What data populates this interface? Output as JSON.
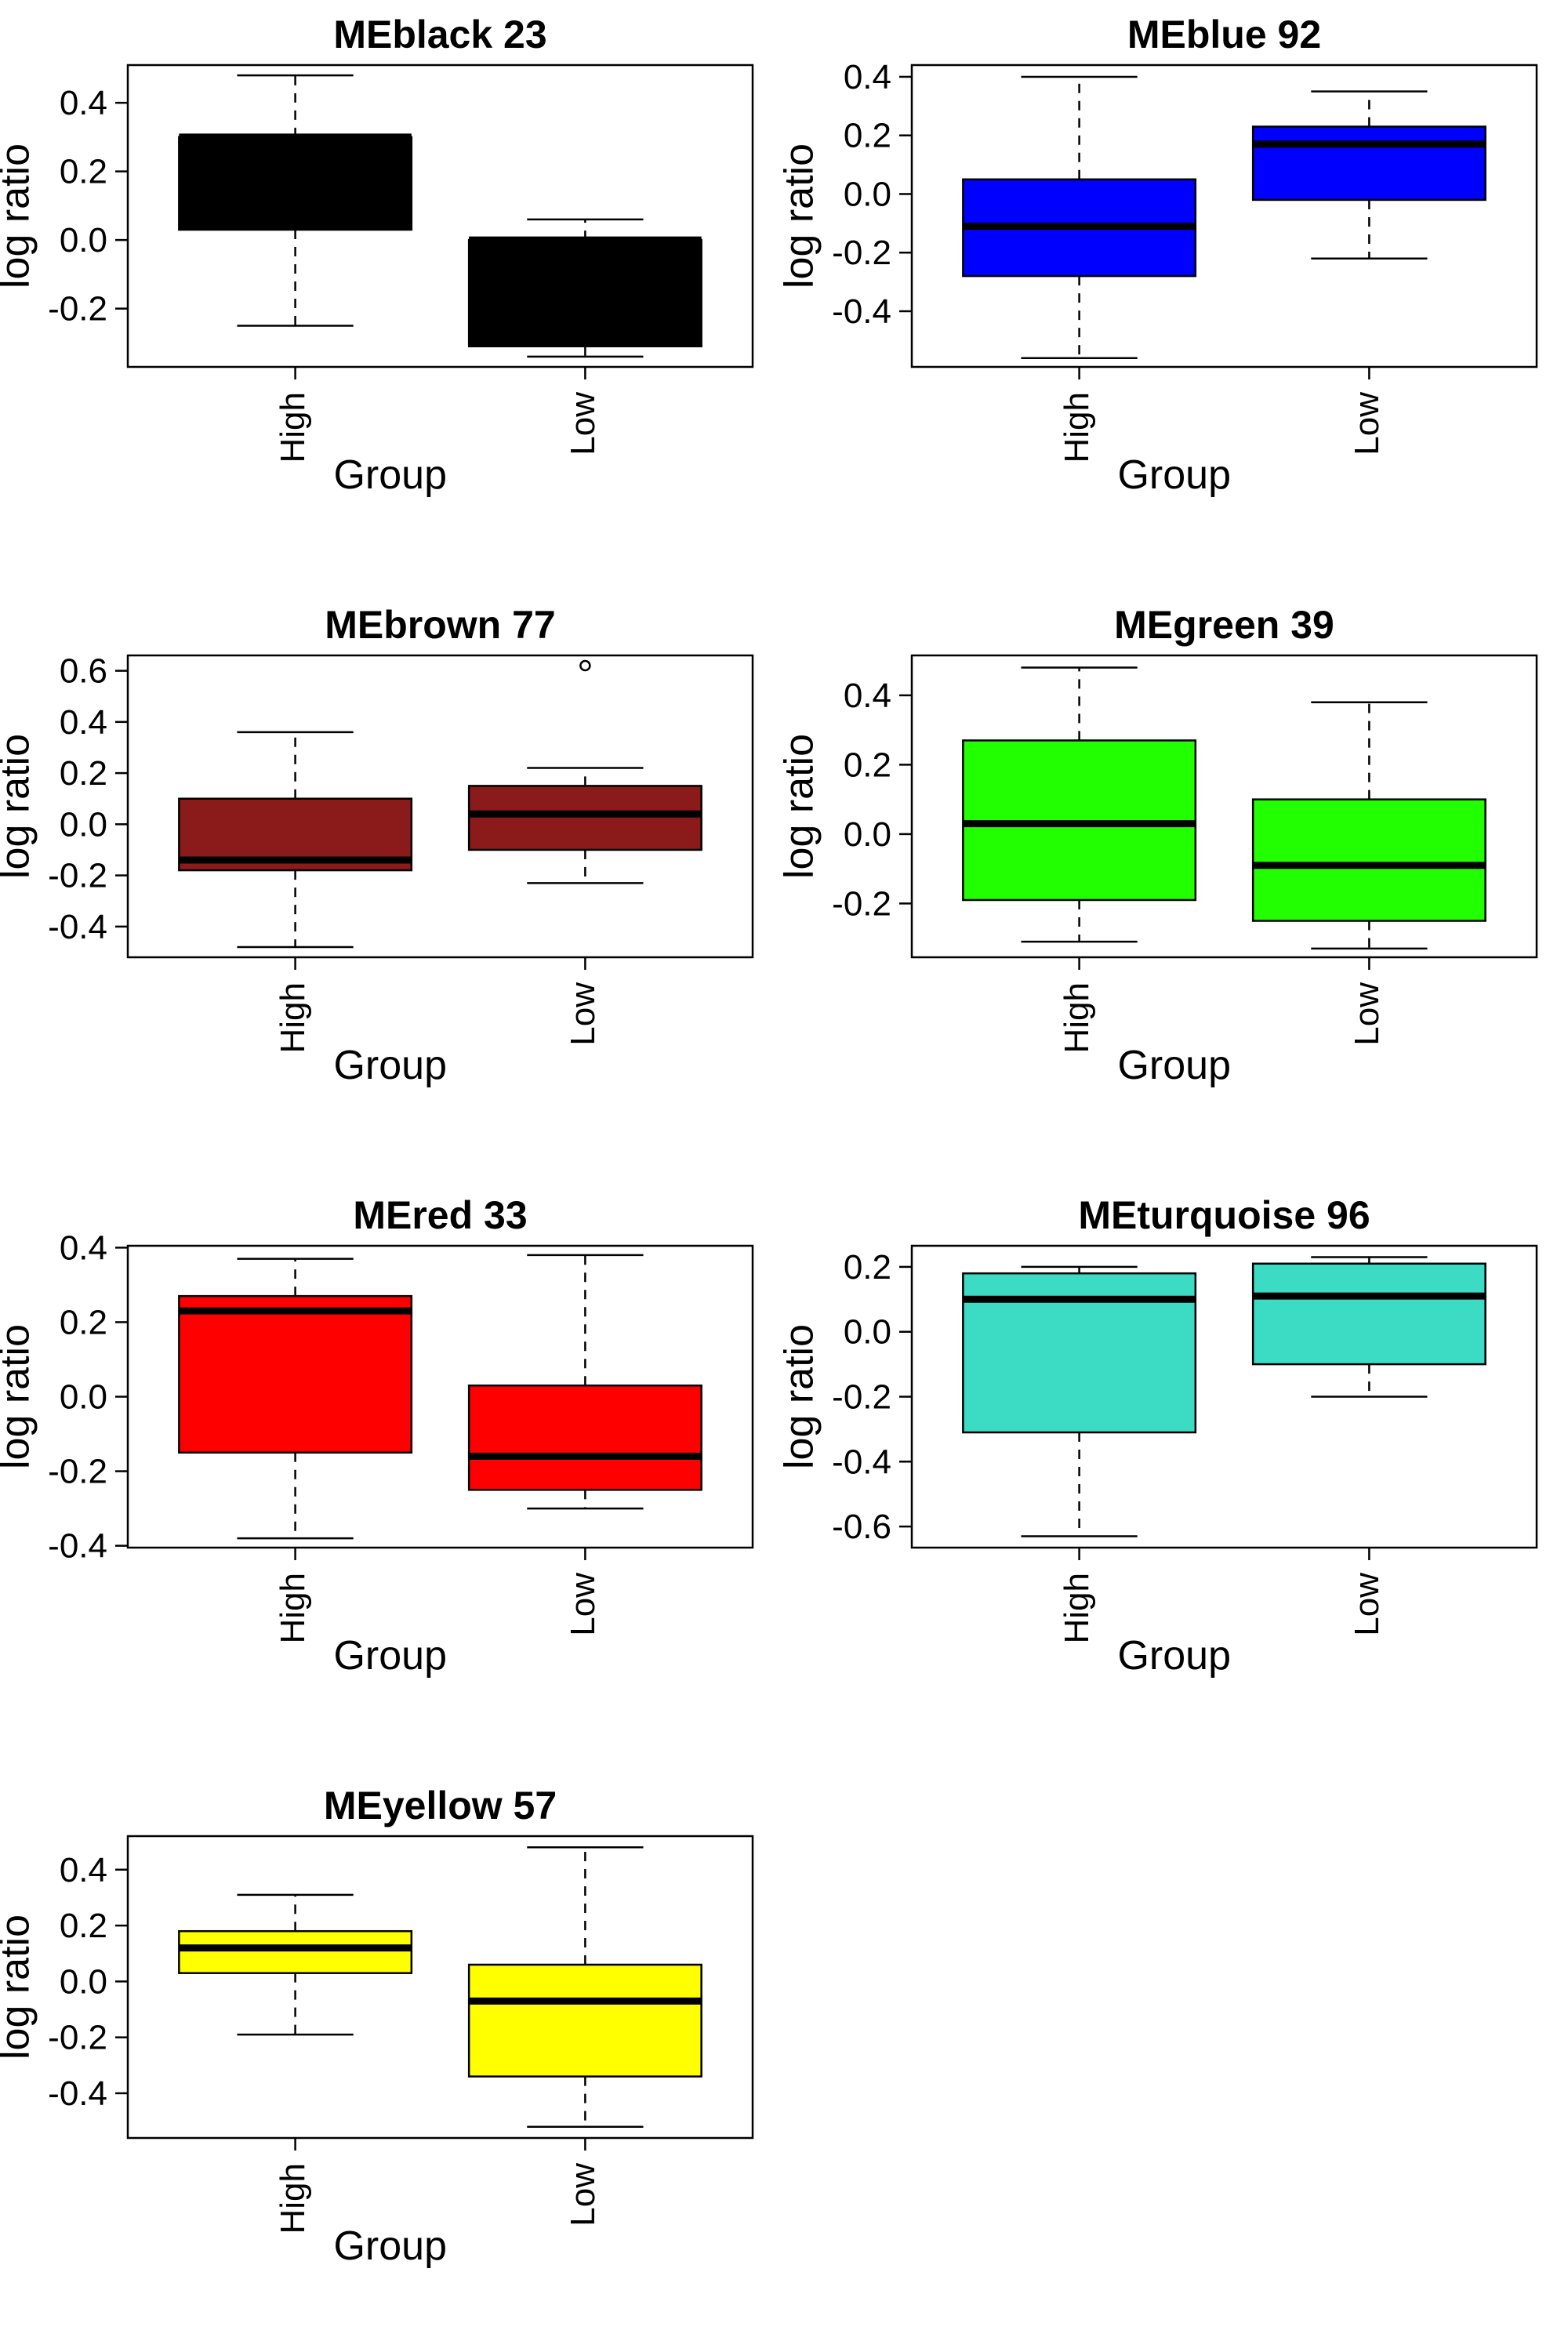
{
  "figure": {
    "panels": [
      {
        "title": "MEblack 23",
        "xlabel": "Group",
        "ylabel": "log ratio",
        "ylim": [
          -0.37,
          0.51
        ],
        "yticks": [
          "0.4",
          "0.2",
          "0.0",
          "-0.2"
        ]
      },
      {
        "title": "MEblue 92",
        "xlabel": "Group",
        "ylabel": "log ratio",
        "ylim": [
          -0.59,
          0.44
        ],
        "yticks": [
          "0.4",
          "0.2",
          "0.0",
          "-0.2",
          "-0.4"
        ]
      },
      {
        "title": "MEbrown 77",
        "xlabel": "Group",
        "ylabel": "log ratio",
        "ylim": [
          -0.52,
          0.66
        ],
        "yticks": [
          "0.6",
          "0.4",
          "0.2",
          "0.0",
          "-0.2",
          "-0.4"
        ]
      },
      {
        "title": "MEgreen 39",
        "xlabel": "Group",
        "ylabel": "log ratio",
        "ylim": [
          -0.355,
          0.515
        ],
        "yticks": [
          "0.4",
          "0.2",
          "0.0",
          "-0.2"
        ]
      },
      {
        "title": "MEred 33",
        "xlabel": "Group",
        "ylabel": "log ratio",
        "ylim": [
          -0.405,
          0.405
        ],
        "yticks": [
          "0.4",
          "0.2",
          "0.0",
          "-0.2",
          "-0.4"
        ]
      },
      {
        "title": "MEturquoise 96",
        "xlabel": "Group",
        "ylabel": "log ratio",
        "ylim": [
          -0.665,
          0.265
        ],
        "yticks": [
          "0.2",
          "0.0",
          "-0.2",
          "-0.4",
          "-0.6"
        ]
      },
      {
        "title": "MEyellow 57",
        "xlabel": "Group",
        "ylabel": "log ratio",
        "ylim": [
          -0.56,
          0.52
        ],
        "yticks": [
          "0.4",
          "0.2",
          "0.0",
          "-0.2",
          "-0.4"
        ]
      }
    ]
  },
  "chart_data": [
    {
      "type": "boxplot",
      "title": "MEblack 23",
      "xlabel": "Group",
      "ylabel": "log ratio",
      "categories": [
        "High",
        "Low"
      ],
      "fill_color": "#000000",
      "ylim": [
        -0.37,
        0.51
      ],
      "boxes": [
        {
          "group": "High",
          "whisker_low": -0.25,
          "q1": 0.03,
          "median": 0.3,
          "q3": 0.3,
          "whisker_high": 0.48,
          "outliers": []
        },
        {
          "group": "Low",
          "whisker_low": -0.34,
          "q1": -0.31,
          "median": 0.0,
          "q3": 0.0,
          "whisker_high": 0.06,
          "outliers": []
        }
      ]
    },
    {
      "type": "boxplot",
      "title": "MEblue 92",
      "xlabel": "Group",
      "ylabel": "log ratio",
      "categories": [
        "High",
        "Low"
      ],
      "fill_color": "#0000ff",
      "ylim": [
        -0.59,
        0.44
      ],
      "boxes": [
        {
          "group": "High",
          "whisker_low": -0.56,
          "q1": -0.28,
          "median": -0.11,
          "q3": 0.05,
          "whisker_high": 0.4,
          "outliers": []
        },
        {
          "group": "Low",
          "whisker_low": -0.22,
          "q1": -0.02,
          "median": 0.17,
          "q3": 0.23,
          "whisker_high": 0.35,
          "outliers": []
        }
      ]
    },
    {
      "type": "boxplot",
      "title": "MEbrown 77",
      "xlabel": "Group",
      "ylabel": "log ratio",
      "categories": [
        "High",
        "Low"
      ],
      "fill_color": "#8b1a1a",
      "ylim": [
        -0.52,
        0.66
      ],
      "boxes": [
        {
          "group": "High",
          "whisker_low": -0.48,
          "q1": -0.18,
          "median": -0.14,
          "q3": 0.1,
          "whisker_high": 0.36,
          "outliers": []
        },
        {
          "group": "Low",
          "whisker_low": -0.23,
          "q1": -0.1,
          "median": 0.04,
          "q3": 0.15,
          "whisker_high": 0.22,
          "outliers": [
            0.62
          ]
        }
      ]
    },
    {
      "type": "boxplot",
      "title": "MEgreen 39",
      "xlabel": "Group",
      "ylabel": "log ratio",
      "categories": [
        "High",
        "Low"
      ],
      "fill_color": "#22ff00",
      "ylim": [
        -0.355,
        0.515
      ],
      "boxes": [
        {
          "group": "High",
          "whisker_low": -0.31,
          "q1": -0.19,
          "median": 0.03,
          "q3": 0.27,
          "whisker_high": 0.48,
          "outliers": []
        },
        {
          "group": "Low",
          "whisker_low": -0.33,
          "q1": -0.25,
          "median": -0.09,
          "q3": 0.1,
          "whisker_high": 0.38,
          "outliers": []
        }
      ]
    },
    {
      "type": "boxplot",
      "title": "MEred 33",
      "xlabel": "Group",
      "ylabel": "log ratio",
      "categories": [
        "High",
        "Low"
      ],
      "fill_color": "#ff0000",
      "ylim": [
        -0.405,
        0.405
      ],
      "boxes": [
        {
          "group": "High",
          "whisker_low": -0.38,
          "q1": -0.15,
          "median": 0.23,
          "q3": 0.27,
          "whisker_high": 0.37,
          "outliers": []
        },
        {
          "group": "Low",
          "whisker_low": -0.3,
          "q1": -0.25,
          "median": -0.16,
          "q3": 0.03,
          "whisker_high": 0.38,
          "outliers": []
        }
      ]
    },
    {
      "type": "boxplot",
      "title": "MEturquoise 96",
      "xlabel": "Group",
      "ylabel": "log ratio",
      "categories": [
        "High",
        "Low"
      ],
      "fill_color": "#3cdcc4",
      "ylim": [
        -0.665,
        0.265
      ],
      "boxes": [
        {
          "group": "High",
          "whisker_low": -0.63,
          "q1": -0.31,
          "median": 0.1,
          "q3": 0.18,
          "whisker_high": 0.2,
          "outliers": []
        },
        {
          "group": "Low",
          "whisker_low": -0.2,
          "q1": -0.1,
          "median": 0.11,
          "q3": 0.21,
          "whisker_high": 0.23,
          "outliers": []
        }
      ]
    },
    {
      "type": "boxplot",
      "title": "MEyellow 57",
      "xlabel": "Group",
      "ylabel": "log ratio",
      "categories": [
        "High",
        "Low"
      ],
      "fill_color": "#ffff00",
      "ylim": [
        -0.56,
        0.52
      ],
      "boxes": [
        {
          "group": "High",
          "whisker_low": -0.19,
          "q1": 0.03,
          "median": 0.12,
          "q3": 0.18,
          "whisker_high": 0.31,
          "outliers": []
        },
        {
          "group": "Low",
          "whisker_low": -0.52,
          "q1": -0.34,
          "median": -0.07,
          "q3": 0.06,
          "whisker_high": 0.48,
          "outliers": []
        }
      ]
    }
  ]
}
